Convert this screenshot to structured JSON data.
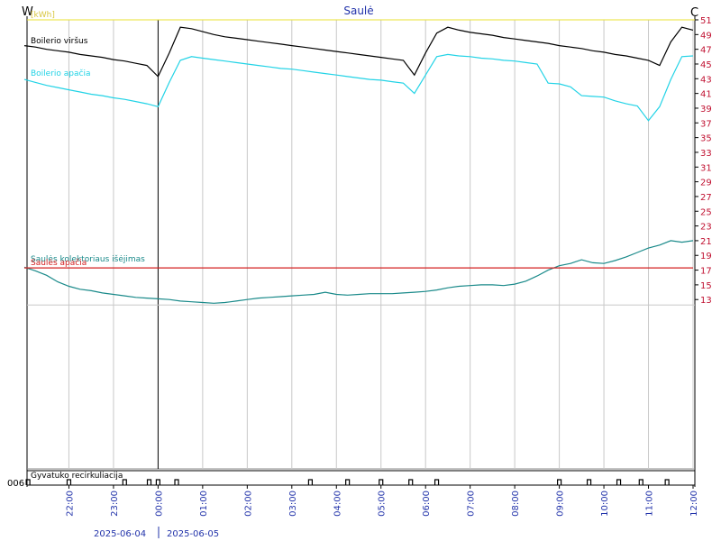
{
  "chart_data": {
    "type": "line",
    "title": "Saulė",
    "left_axis_label": "W",
    "right_axis_label": "C",
    "unit_label": "[kWh]",
    "x": [
      "21:00",
      "21:15",
      "21:30",
      "21:45",
      "22:00",
      "22:15",
      "22:30",
      "22:45",
      "23:00",
      "23:15",
      "23:30",
      "23:45",
      "00:00",
      "00:15",
      "00:30",
      "00:45",
      "01:00",
      "01:15",
      "01:30",
      "01:45",
      "02:00",
      "02:15",
      "02:30",
      "02:45",
      "03:00",
      "03:15",
      "03:30",
      "03:45",
      "04:00",
      "04:15",
      "04:30",
      "04:45",
      "05:00",
      "05:15",
      "05:30",
      "05:45",
      "06:00",
      "06:15",
      "06:30",
      "06:45",
      "07:00",
      "07:15",
      "07:30",
      "07:45",
      "08:00",
      "08:15",
      "08:30",
      "08:45",
      "09:00",
      "09:15",
      "09:30",
      "09:45",
      "10:00",
      "10:15",
      "10:30",
      "10:45",
      "11:00",
      "11:15",
      "11:30",
      "11:45",
      "12:00"
    ],
    "xticks": [
      "22:00",
      "23:00",
      "00:00",
      "01:00",
      "02:00",
      "03:00",
      "04:00",
      "05:00",
      "06:00",
      "07:00",
      "08:00",
      "09:00",
      "10:00",
      "11:00",
      "12:00"
    ],
    "dates": [
      "2025-06-04",
      "2025-06-05"
    ],
    "ylim": [
      -10,
      51
    ],
    "yticks": [
      13,
      15,
      17,
      19,
      21,
      23,
      25,
      27,
      29,
      31,
      33,
      35,
      37,
      39,
      41,
      43,
      45,
      47,
      49,
      51
    ],
    "series": [
      {
        "name": "Boilerio viršus",
        "color": "#000000",
        "values": [
          47.5,
          47.3,
          47.0,
          46.8,
          46.6,
          46.3,
          46.1,
          45.9,
          45.6,
          45.4,
          45.1,
          44.8,
          43.3,
          46.5,
          50.0,
          49.8,
          49.4,
          49.0,
          48.7,
          48.5,
          48.3,
          48.1,
          47.9,
          47.7,
          47.5,
          47.3,
          47.1,
          46.9,
          46.7,
          46.5,
          46.3,
          46.1,
          45.9,
          45.7,
          45.5,
          43.5,
          46.5,
          49.2,
          50.0,
          49.6,
          49.3,
          49.1,
          48.9,
          48.6,
          48.4,
          48.2,
          48.0,
          47.8,
          47.5,
          47.3,
          47.1,
          46.8,
          46.6,
          46.3,
          46.1,
          45.8,
          45.5,
          44.8,
          48.0,
          50.0,
          49.6
        ]
      },
      {
        "name": "Boilerio apačia",
        "color": "#22d3e6",
        "values": [
          42.9,
          42.5,
          42.1,
          41.8,
          41.5,
          41.2,
          40.9,
          40.7,
          40.4,
          40.2,
          39.9,
          39.6,
          39.2,
          42.5,
          45.5,
          46.0,
          45.8,
          45.6,
          45.4,
          45.2,
          45.0,
          44.8,
          44.6,
          44.4,
          44.3,
          44.1,
          43.9,
          43.7,
          43.5,
          43.3,
          43.1,
          42.9,
          42.8,
          42.6,
          42.4,
          41.0,
          43.5,
          46.0,
          46.3,
          46.1,
          46.0,
          45.8,
          45.7,
          45.5,
          45.4,
          45.2,
          45.0,
          42.4,
          42.3,
          41.9,
          40.7,
          40.6,
          40.5,
          40.0,
          39.6,
          39.3,
          37.3,
          39.2,
          42.9,
          46.0,
          46.1
        ]
      },
      {
        "name": "Saulės kolektoriaus išėjimas",
        "color": "#1a8a8a",
        "values": [
          17.4,
          16.9,
          16.3,
          15.4,
          14.8,
          14.4,
          14.2,
          13.9,
          13.7,
          13.5,
          13.3,
          13.2,
          13.1,
          13.0,
          12.8,
          12.7,
          12.6,
          12.5,
          12.6,
          12.8,
          13.0,
          13.2,
          13.3,
          13.4,
          13.5,
          13.6,
          13.7,
          14.0,
          13.7,
          13.6,
          13.7,
          13.8,
          13.8,
          13.8,
          13.9,
          14.0,
          14.1,
          14.3,
          14.6,
          14.8,
          14.9,
          15.0,
          15.0,
          14.9,
          15.1,
          15.5,
          16.2,
          17.0,
          17.6,
          17.9,
          18.4,
          18.0,
          17.9,
          18.3,
          18.8,
          19.4,
          20.0,
          20.4,
          21.0,
          20.8,
          21.0
        ]
      },
      {
        "name": "Saulės apačia",
        "color": "#d42020",
        "values": [
          17.3,
          17.3,
          17.3,
          17.3,
          17.3,
          17.3,
          17.3,
          17.3,
          17.3,
          17.3,
          17.3,
          17.3,
          17.3,
          17.3,
          17.3,
          17.3,
          17.3,
          17.3,
          17.3,
          17.3,
          17.3,
          17.3,
          17.3,
          17.3,
          17.3,
          17.3,
          17.3,
          17.3,
          17.3,
          17.3,
          17.3,
          17.3,
          17.3,
          17.3,
          17.3,
          17.3,
          17.3,
          17.3,
          17.3,
          17.3,
          17.3,
          17.3,
          17.3,
          17.3,
          17.3,
          17.3,
          17.3,
          17.3,
          17.3,
          17.3,
          17.3,
          17.3,
          17.3,
          17.3,
          17.3,
          17.3,
          17.3,
          17.3,
          17.3,
          17.3,
          17.3
        ]
      }
    ],
    "recirculation": {
      "name": "Gyvatuko recirkuliacija",
      "id_label": "006",
      "times": [
        "21:05",
        "22:00",
        "23:15",
        "23:48",
        "00:00",
        "00:25",
        "03:25",
        "04:15",
        "05:00",
        "05:40",
        "06:15",
        "09:00",
        "09:40",
        "10:20",
        "10:50",
        "11:25"
      ]
    }
  }
}
